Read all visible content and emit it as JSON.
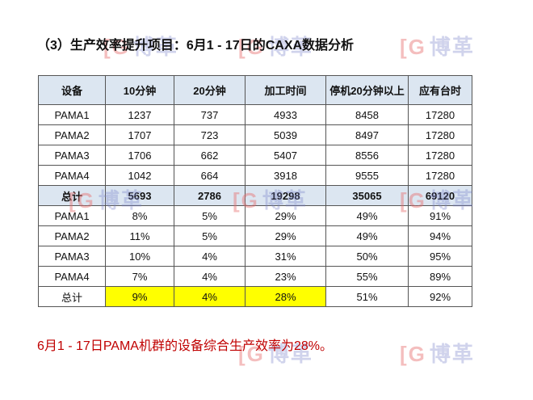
{
  "title": "（3）生产效率提升项目：6月1 - 17日的CAXA数据分析",
  "watermark": "博革",
  "table": {
    "headers": [
      "设备",
      "10分钟",
      "20分钟",
      "加工时间",
      "停机20分钟以上",
      "应有台时"
    ],
    "rows": [
      [
        "PAMA1",
        "1237",
        "737",
        "4933",
        "8458",
        "17280"
      ],
      [
        "PAMA2",
        "1707",
        "723",
        "5039",
        "8497",
        "17280"
      ],
      [
        "PAMA3",
        "1706",
        "662",
        "5407",
        "8556",
        "17280"
      ],
      [
        "PAMA4",
        "1042",
        "664",
        "3918",
        "9555",
        "17280"
      ],
      [
        "总计",
        "5693",
        "2786",
        "19298",
        "35065",
        "69120"
      ],
      [
        "PAMA1",
        "8%",
        "5%",
        "29%",
        "49%",
        "91%"
      ],
      [
        "PAMA2",
        "11%",
        "5%",
        "29%",
        "49%",
        "94%"
      ],
      [
        "PAMA3",
        "10%",
        "4%",
        "31%",
        "50%",
        "95%"
      ],
      [
        "PAMA4",
        "7%",
        "4%",
        "23%",
        "55%",
        "89%"
      ],
      [
        "总计",
        "9%",
        "4%",
        "28%",
        "51%",
        "92%"
      ]
    ]
  },
  "highlight_color": "#ffff00",
  "note": "6月1 - 17日PAMA机群的设备综合生产效率为28%。"
}
